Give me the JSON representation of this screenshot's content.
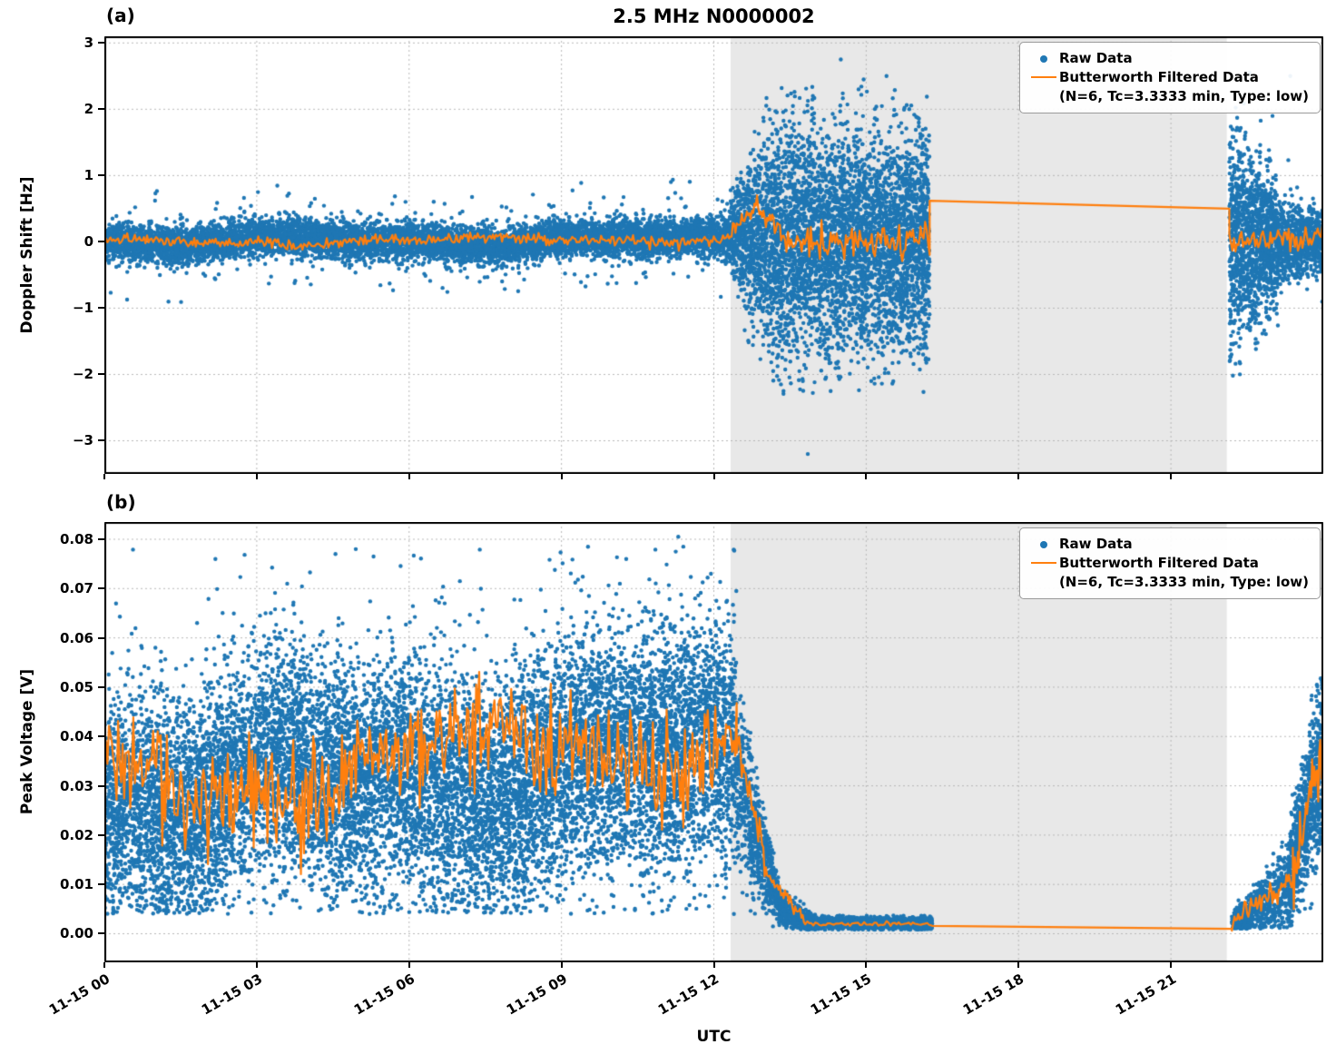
{
  "figure": {
    "title": "2.5 MHz N0000002",
    "panel_a_label": "(a)",
    "panel_b_label": "(b)"
  },
  "legend": {
    "raw_label": "Raw Data",
    "filtered_label_line1": "Butterworth Filtered Data",
    "filtered_label_line2": "(N=6, Tc=3.3333 min, Type: low)"
  },
  "colors": {
    "raw": "#1f77b4",
    "filtered": "#ff7f0e",
    "grid": "#b8b8b8",
    "shade": "#e8e8e8"
  },
  "x_axis": {
    "label": "UTC",
    "lim": [
      0,
      24
    ],
    "ticks": [
      {
        "t": 0,
        "label": "11-15 00"
      },
      {
        "t": 3,
        "label": "11-15 03"
      },
      {
        "t": 6,
        "label": "11-15 06"
      },
      {
        "t": 9,
        "label": "11-15 09"
      },
      {
        "t": 12,
        "label": "11-15 12"
      },
      {
        "t": 15,
        "label": "11-15 15"
      },
      {
        "t": 18,
        "label": "11-15 18"
      },
      {
        "t": 21,
        "label": "11-15 21"
      }
    ]
  },
  "night_shading": {
    "t0": 12.33,
    "t1": 22.1,
    "color": "#e8e8e8"
  },
  "chart_data": [
    {
      "type": "scatter",
      "label": "(a)",
      "ylabel": "Doppler Shift [Hz]",
      "ylim": [
        -3.5,
        3.1
      ],
      "fclamp": [
        -1.5,
        1.5
      ],
      "seed": 42,
      "yticks": [
        {
          "v": 3,
          "label": "3"
        },
        {
          "v": 2,
          "label": "2"
        },
        {
          "v": 1,
          "label": "1"
        },
        {
          "v": 0,
          "label": "0"
        },
        {
          "v": -1,
          "label": "−1"
        },
        {
          "v": -2,
          "label": "−2"
        },
        {
          "v": -3,
          "label": "−3"
        }
      ],
      "series": [
        {
          "name": "Raw Data",
          "kind": "scatter",
          "bands": [
            {
              "t0": 0,
              "t1": 12.33,
              "n": 9000,
              "c0": 0.0,
              "c1": 0.02,
              "s0": 0.13,
              "s1": 0.14,
              "wob": 0.05,
              "tail": 0.05,
              "tailMul": 2.6,
              "clip": 1.0
            },
            {
              "t0": 12.33,
              "t1": 13.1,
              "n": 800,
              "c0": 0.1,
              "c1": 0.05,
              "s0": 0.3,
              "s1": 0.85,
              "clip": 2.2
            },
            {
              "t0": 13.1,
              "t1": 16.25,
              "n": 4200,
              "c0": 0.0,
              "c1": 0.0,
              "s0": 0.82,
              "s1": 0.82,
              "tail": 0.03,
              "tailMul": 1.6,
              "clip": 2.35
            },
            {
              "t0": 22.15,
              "t1": 23.1,
              "n": 1300,
              "c0": 0.0,
              "c1": 0.0,
              "s0": 0.8,
              "s1": 0.45,
              "tail": 0.04,
              "tailMul": 1.5,
              "clip": 2.1
            },
            {
              "t0": 23.1,
              "t1": 24,
              "n": 800,
              "c0": 0.0,
              "c1": 0.0,
              "s0": 0.3,
              "s1": 0.22,
              "tail": 0.05,
              "tailMul": 2.0,
              "clip": 1.3
            }
          ],
          "outliers": [
            [
              13.85,
              -3.2
            ],
            [
              14.5,
              2.75
            ],
            [
              14.95,
              2.45
            ],
            [
              14.85,
              2.3
            ],
            [
              13.95,
              2.2
            ],
            [
              15.4,
              2.5
            ],
            [
              14.3,
              -2.25
            ],
            [
              15.1,
              -2.1
            ],
            [
              22.55,
              2.55
            ],
            [
              23.35,
              2.5
            ],
            [
              23.0,
              1.9
            ],
            [
              12.9,
              0.95
            ],
            [
              13.3,
              -1.5
            ]
          ]
        },
        {
          "name": "Butterworth Filtered Data (N=6, Tc=3.3333 min, Type: low)",
          "kind": "line",
          "segments": [
            {
              "t0": 0,
              "t1": 12.25,
              "y0": 0.0,
              "y1": 0.04,
              "amp": 0.07,
              "wob": 0.04,
              "step": 0.03
            },
            {
              "t0": 12.25,
              "t1": 12.8,
              "y0": 0.06,
              "y1": 0.5,
              "amp": 0.12,
              "step": 0.025
            },
            {
              "t0": 12.8,
              "t1": 13.4,
              "y0": 0.55,
              "y1": 0.1,
              "amp": 0.15,
              "step": 0.025
            },
            {
              "t0": 13.4,
              "t1": 16.25,
              "y0": 0.0,
              "y1": 0.02,
              "amp": 0.23,
              "step": 0.03
            },
            {
              "t0": 16.25,
              "t1": 22.15,
              "y0": 0.62,
              "y1": 0.5,
              "straight": true
            },
            {
              "t0": 22.15,
              "t1": 24,
              "y0": 0.0,
              "y1": 0.01,
              "amp": 0.17,
              "step": 0.03
            }
          ]
        }
      ]
    },
    {
      "type": "scatter",
      "label": "(b)",
      "ylabel": "Peak Voltage [V]",
      "ylim": [
        -0.0058,
        0.0835
      ],
      "fclamp": [
        0.0006,
        0.06
      ],
      "seed": 1337,
      "yticks": [
        {
          "v": 0.08,
          "label": "0.08"
        },
        {
          "v": 0.07,
          "label": "0.07"
        },
        {
          "v": 0.06,
          "label": "0.06"
        },
        {
          "v": 0.05,
          "label": "0.05"
        },
        {
          "v": 0.04,
          "label": "0.04"
        },
        {
          "v": 0.03,
          "label": "0.03"
        },
        {
          "v": 0.02,
          "label": "0.02"
        },
        {
          "v": 0.01,
          "label": "0.01"
        },
        {
          "v": 0.0,
          "label": "0.00"
        }
      ],
      "series": [
        {
          "name": "Raw Data",
          "kind": "scatter",
          "bands": [
            {
              "t0": 0,
              "t1": 12.45,
              "n": 13000,
              "c0": 0.028,
              "c1": 0.036,
              "s0": 0.011,
              "s1": 0.012,
              "wob": 0.004,
              "tail": 0.05,
              "tailMul": 2.1,
              "clipLo": 0.004,
              "clipHi": 0.079
            },
            {
              "t0": 12.45,
              "t1": 13.3,
              "n": 700,
              "c0": 0.032,
              "c1": 0.006,
              "s0": 0.009,
              "s1": 0.002,
              "clipLo": 0.0012,
              "clipHi": 0.06
            },
            {
              "t0": 13.3,
              "t1": 14.0,
              "n": 500,
              "c0": 0.005,
              "c1": 0.0022,
              "s0": 0.0018,
              "s1": 0.0008,
              "clipLo": 0.0008,
              "clipHi": 0.02
            },
            {
              "t0": 14.0,
              "t1": 16.3,
              "n": 1500,
              "c0": 0.0022,
              "c1": 0.002,
              "s0": 0.0006,
              "s1": 0.0006,
              "clipLo": 0.0008,
              "clipHi": 0.006
            },
            {
              "t0": 22.2,
              "t1": 23.3,
              "n": 600,
              "c0": 0.002,
              "c1": 0.009,
              "s0": 0.0012,
              "s1": 0.004,
              "clipLo": 0.001,
              "clipHi": 0.03
            },
            {
              "t0": 23.3,
              "t1": 24,
              "n": 900,
              "c0": 0.01,
              "c1": 0.036,
              "s0": 0.004,
              "s1": 0.009,
              "tail": 0.05,
              "tailMul": 1.5,
              "clipLo": 0.0012,
              "clipHi": 0.052
            }
          ],
          "outliers": [
            [
              11.3,
              0.0805
            ],
            [
              4.95,
              0.078
            ],
            [
              5.3,
              0.0765
            ],
            [
              4.55,
              0.077
            ],
            [
              11.25,
              0.0775
            ],
            [
              3.6,
              0.071
            ],
            [
              7.0,
              0.0715
            ],
            [
              10.15,
              0.071
            ]
          ]
        },
        {
          "name": "Butterworth Filtered Data (N=6, Tc=3.3333 min, Type: low)",
          "kind": "line",
          "segments": [
            {
              "t0": 0,
              "t1": 12.45,
              "y0": 0.03,
              "y1": 0.04,
              "amp": 0.009,
              "wob": 0.005,
              "step": 0.03
            },
            {
              "t0": 12.45,
              "t1": 13.05,
              "y0": 0.04,
              "y1": 0.012,
              "amp": 0.004,
              "step": 0.025
            },
            {
              "t0": 13.05,
              "t1": 13.8,
              "y0": 0.012,
              "y1": 0.0025,
              "amp": 0.0012,
              "step": 0.025
            },
            {
              "t0": 13.8,
              "t1": 16.3,
              "y0": 0.002,
              "y1": 0.002,
              "amp": 0.0004,
              "step": 0.04
            },
            {
              "t0": 16.3,
              "t1": 22.2,
              "y0": 0.0016,
              "y1": 0.001,
              "straight": true
            },
            {
              "t0": 22.2,
              "t1": 23.4,
              "y0": 0.0018,
              "y1": 0.012,
              "amp": 0.0025,
              "step": 0.025
            },
            {
              "t0": 23.4,
              "t1": 24,
              "y0": 0.012,
              "y1": 0.04,
              "amp": 0.006,
              "step": 0.02
            }
          ]
        }
      ]
    }
  ]
}
